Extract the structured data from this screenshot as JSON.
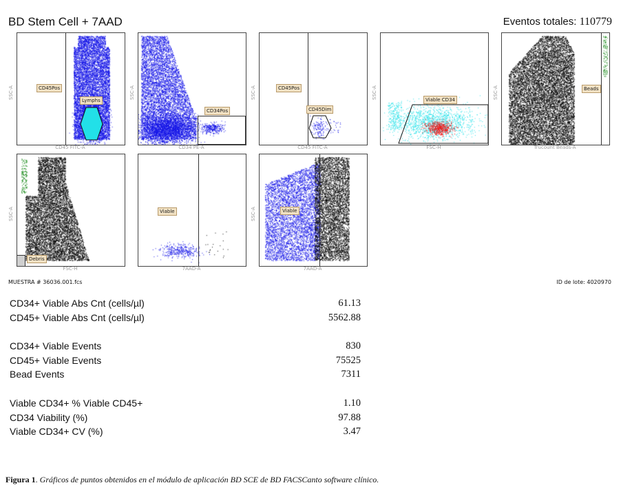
{
  "header": {
    "title": "BD Stem Cell + 7AAD",
    "total_label": "Eventos totales:",
    "total_value": "110779"
  },
  "plots": [
    {
      "id": "p1",
      "xlabel": "CD45 FITC-A",
      "ylabel": "SSC-A",
      "gates": [
        "CD45Pos",
        "Lymphs"
      ]
    },
    {
      "id": "p2",
      "xlabel": "CD34 PE-A",
      "ylabel": "SSC-A",
      "gates": [
        "CD34Pos"
      ]
    },
    {
      "id": "p3",
      "xlabel": "CD45 FITC-A",
      "ylabel": "SSC-A",
      "gates": [
        "CD45Pos",
        "CD45Dim"
      ]
    },
    {
      "id": "p4",
      "xlabel": "FSC-H",
      "ylabel": "SSC-A",
      "gates": [
        "Viable CD34"
      ]
    },
    {
      "id": "p5",
      "xlabel": "Trucount Beads-A",
      "ylabel": "SSC-A",
      "gates": [
        "Beads"
      ]
    },
    {
      "id": "p6",
      "xlabel": "FSC-H",
      "ylabel": "SSC-A",
      "gates": [
        "Debris"
      ]
    },
    {
      "id": "p7",
      "xlabel": "7AAD-A",
      "ylabel": "",
      "gates": [
        "Viable"
      ]
    },
    {
      "id": "p8",
      "xlabel": "7AAD-A",
      "ylabel": "SSC-A",
      "gates": [
        "Viable"
      ]
    }
  ],
  "footer": {
    "sample": "MUESTRA # 36036.001.fcs",
    "lot": "ID de lote: 4020970"
  },
  "stats": [
    {
      "label": "CD34+ Viable Abs Cnt (cells/µl)",
      "value": "61.13"
    },
    {
      "label": "CD45+ Viable Abs Cnt (cells/µl)",
      "value": "5562.88"
    },
    {
      "label": "CD34+ Viable Events",
      "value": "830"
    },
    {
      "label": "CD45+ Viable Events",
      "value": "75525"
    },
    {
      "label": "Bead Events",
      "value": "7311"
    },
    {
      "label": "Viable CD34+ % Viable CD45+",
      "value": "1.10"
    },
    {
      "label": "CD34 Viability (%)",
      "value": "97.88"
    },
    {
      "label": "Viable CD34+ CV (%)",
      "value": "3.47"
    }
  ],
  "caption": {
    "label": "Figura 1",
    "text": "Gráficos de puntos obtenidos en el módulo de aplicación BD SCE de BD FACSCanto software clínico."
  },
  "colors": {
    "blue": "#1414e6",
    "black": "#000000",
    "cyan": "#22e0e8",
    "red": "#ee1111",
    "green": "#1a8a1a",
    "gate_label": "#f2e2c4"
  }
}
